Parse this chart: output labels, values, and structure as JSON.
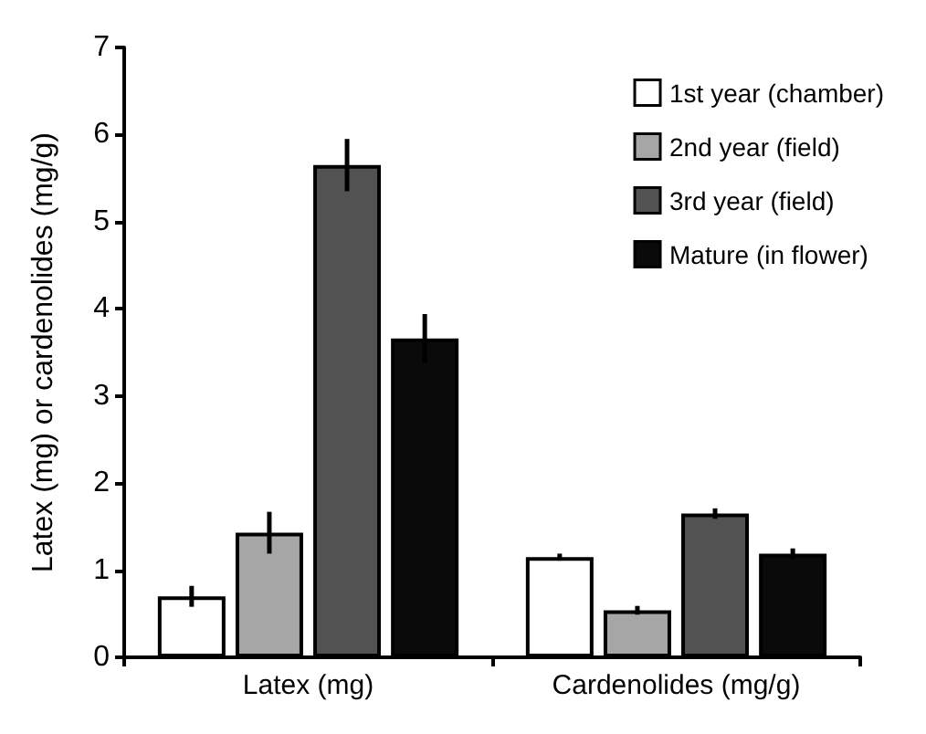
{
  "chart_data": {
    "type": "bar",
    "ylabel": "Latex (mg) or cardenolides (mg/g)",
    "categories": [
      "Latex (mg)",
      "Cardenolides (mg/g)"
    ],
    "series": [
      {
        "name": "1st year (chamber)",
        "color": "#ffffff",
        "values": [
          0.7,
          1.15
        ],
        "errors": [
          0.12,
          0.04
        ]
      },
      {
        "name": "2nd year (field)",
        "color": "#a6a6a6",
        "values": [
          1.43,
          0.54
        ],
        "errors": [
          0.24,
          0.05
        ]
      },
      {
        "name": "3rd year (field)",
        "color": "#525252",
        "values": [
          5.65,
          1.65
        ],
        "errors": [
          0.3,
          0.06
        ]
      },
      {
        "name": "Mature (in flower)",
        "color": "#0a0a0a",
        "values": [
          3.66,
          1.19
        ],
        "errors": [
          0.28,
          0.06
        ]
      }
    ],
    "ylim": [
      0,
      7
    ],
    "yticks": [
      0,
      1,
      2,
      3,
      4,
      5,
      6,
      7
    ],
    "grid": false,
    "legend": "top right"
  }
}
